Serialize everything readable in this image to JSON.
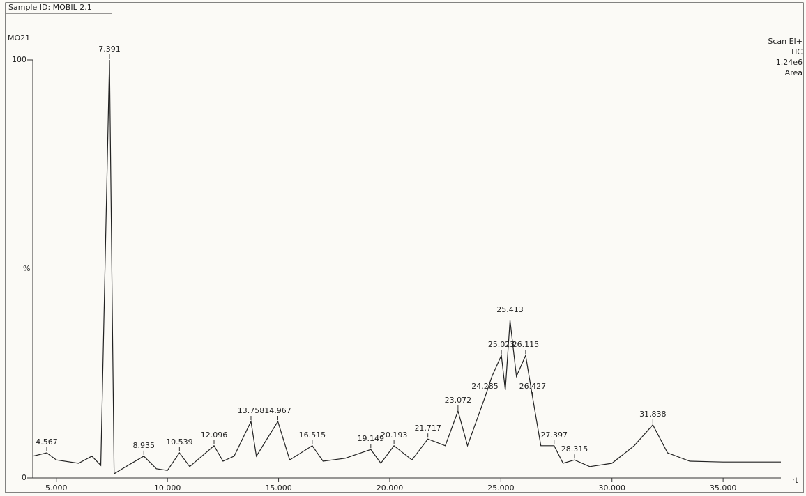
{
  "chart_data": {
    "type": "line",
    "header": "Sample ID: MOBIL 2.1",
    "title": "MO21",
    "ylabel": "%",
    "xlabel": "rt",
    "info": [
      "Scan EI+",
      "TIC",
      "1.24e6",
      "Area"
    ],
    "series": [
      {
        "name": "TIC",
        "color": "#222222",
        "x": [
          3.94,
          4.567,
          5.0,
          6.0,
          6.6,
          7.0,
          7.391,
          7.6,
          8.0,
          8.935,
          9.5,
          10.0,
          10.539,
          11.0,
          12.096,
          12.5,
          13.0,
          13.758,
          14.0,
          14.967,
          15.5,
          16.515,
          17.0,
          18.0,
          19.149,
          19.6,
          20.193,
          21.0,
          21.717,
          22.5,
          23.072,
          23.5,
          24.285,
          24.6,
          25.023,
          25.2,
          25.413,
          25.7,
          26.115,
          26.427,
          26.8,
          27.397,
          27.8,
          28.315,
          29.0,
          30.0,
          31.0,
          31.838,
          32.5,
          33.5,
          35.0,
          37.6
        ],
        "values": [
          5.2,
          6,
          4.3,
          3.5,
          5.2,
          3,
          100,
          1,
          2.3,
          5.2,
          2.2,
          1.8,
          6,
          2.7,
          7.7,
          4,
          5.2,
          13.5,
          5.2,
          13.5,
          4.3,
          7.7,
          4,
          4.7,
          6.8,
          3.5,
          7.7,
          4.3,
          9.3,
          7.7,
          16,
          7.7,
          19.3,
          24.3,
          29.3,
          21,
          37.7,
          24.3,
          29.3,
          19.3,
          7.7,
          7.7,
          3.5,
          4.3,
          2.7,
          3.5,
          7.7,
          12.7,
          6,
          4,
          3.8,
          3.8
        ]
      }
    ],
    "peaks": [
      {
        "x": 4.567,
        "y": 6
      },
      {
        "x": 7.391,
        "y": 100
      },
      {
        "x": 8.935,
        "y": 5.2
      },
      {
        "x": 10.539,
        "y": 6
      },
      {
        "x": 12.096,
        "y": 7.7
      },
      {
        "x": 13.758,
        "y": 13.5
      },
      {
        "x": 14.967,
        "y": 13.5
      },
      {
        "x": 16.515,
        "y": 7.7
      },
      {
        "x": 19.149,
        "y": 6.8
      },
      {
        "x": 20.193,
        "y": 7.7
      },
      {
        "x": 21.717,
        "y": 9.3
      },
      {
        "x": 23.072,
        "y": 16
      },
      {
        "x": 24.285,
        "y": 19.3
      },
      {
        "x": 25.023,
        "y": 29.3
      },
      {
        "x": 25.413,
        "y": 37.7
      },
      {
        "x": 26.115,
        "y": 29.3
      },
      {
        "x": 26.427,
        "y": 19.3
      },
      {
        "x": 27.397,
        "y": 7.7
      },
      {
        "x": 28.315,
        "y": 4.3
      },
      {
        "x": 31.838,
        "y": 12.7
      }
    ],
    "xlim": [
      3.94,
      37.6
    ],
    "xticks": [
      {
        "value": 5,
        "label": "5.000"
      },
      {
        "value": 10,
        "label": "10.000"
      },
      {
        "value": 15,
        "label": "15.000"
      },
      {
        "value": 20,
        "label": "20.000"
      },
      {
        "value": 25,
        "label": "25.000"
      },
      {
        "value": 30,
        "label": "30.000"
      },
      {
        "value": 35,
        "label": "35.000"
      }
    ],
    "ylim": [
      0,
      100
    ],
    "yticks": [
      0,
      100
    ]
  }
}
